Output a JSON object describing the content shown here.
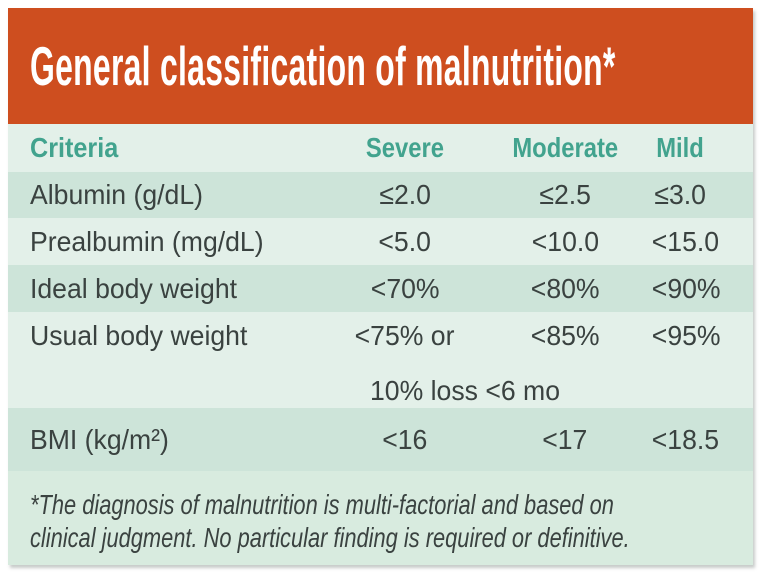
{
  "title": "General classification of malnutrition*",
  "colors": {
    "header_bg": "#ce4e1f",
    "header_text": "#ffffff",
    "column_header_text": "#42a38e",
    "row_pale_bg": "#e3f0e9",
    "row_dark_bg": "#cde4d9",
    "footnote_bg": "#d8ebdf",
    "body_text": "#3a4240"
  },
  "table": {
    "columns": [
      "Criteria",
      "Severe",
      "Moderate",
      "Mild"
    ],
    "rows": [
      {
        "criteria": "Albumin (g/dL)",
        "severe": "≤2.0",
        "moderate": "≤2.5",
        "mild": "≤3.0"
      },
      {
        "criteria": "Prealbumin (mg/dL)",
        "severe": "<5.0",
        "moderate": "<10.0",
        "mild": "<15.0"
      },
      {
        "criteria": "Ideal body weight",
        "severe": "<70%",
        "moderate": "<80%",
        "mild": "<90%"
      },
      {
        "criteria": "Usual body weight",
        "severe": "<75% or",
        "severe_line2": "10% loss <6 mo",
        "moderate": "<85%",
        "mild": "<95%"
      },
      {
        "criteria": "BMI (kg/m²)",
        "severe": "<16",
        "moderate": "<17",
        "mild": "<18.5"
      }
    ]
  },
  "footnote": {
    "line1": "*The diagnosis of malnutrition is multi-factorial and based on",
    "line2": "clinical judgment. No particular finding is required or definitive."
  },
  "chart_data": {
    "type": "table",
    "title": "General classification of malnutrition*",
    "columns": [
      "Criteria",
      "Severe",
      "Moderate",
      "Mild"
    ],
    "rows": [
      [
        "Albumin (g/dL)",
        "≤2.0",
        "≤2.5",
        "≤3.0"
      ],
      [
        "Prealbumin (mg/dL)",
        "<5.0",
        "<10.0",
        "<15.0"
      ],
      [
        "Ideal body weight",
        "<70%",
        "<80%",
        "<90%"
      ],
      [
        "Usual body weight",
        "<75% or 10% loss <6 mo",
        "<85%",
        "<95%"
      ],
      [
        "BMI (kg/m²)",
        "<16",
        "<17",
        "<18.5"
      ]
    ],
    "footnote": "*The diagnosis of malnutrition is multi-factorial and based on clinical judgment. No particular finding is required or definitive.",
    "layout": "orange title band, teal column headers, alternating green rows"
  }
}
